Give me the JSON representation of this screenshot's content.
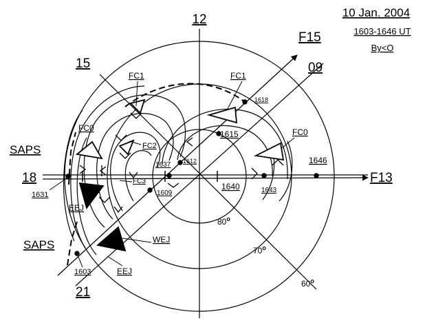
{
  "header": {
    "date": "10 Jan. 2004",
    "time_range": "1603-1646 UT",
    "imf": "By<O"
  },
  "mlt_labels": {
    "noon": "12",
    "dusk": "18",
    "pre_midnight": "21",
    "afternoon": "15",
    "morning": "09"
  },
  "latitude_labels": {
    "lat80": "80",
    "lat70": "70",
    "lat60": "60",
    "degree_symbol": "o"
  },
  "satellites": {
    "f15": "F15",
    "f13": "F13"
  },
  "features": {
    "fc1_left": "FC1",
    "fc1_right": "FC1",
    "fc0_left": "FC0",
    "fc0_right": "FC0",
    "fc2": "FC2",
    "fc3": "FC3",
    "saps_upper": "SAPS",
    "saps_lower": "SAPS",
    "eej_upper": "EEJ",
    "eej_lower": "EEJ",
    "wej": "WEJ"
  },
  "times": {
    "t1618": "1618",
    "t1615": "1615",
    "t1612": "1612",
    "t1637": "1637",
    "t1609": "1609",
    "t1640": "1640",
    "t1643": "1643",
    "t1646": "1646",
    "t1631": "1631",
    "t1603": "1603"
  }
}
